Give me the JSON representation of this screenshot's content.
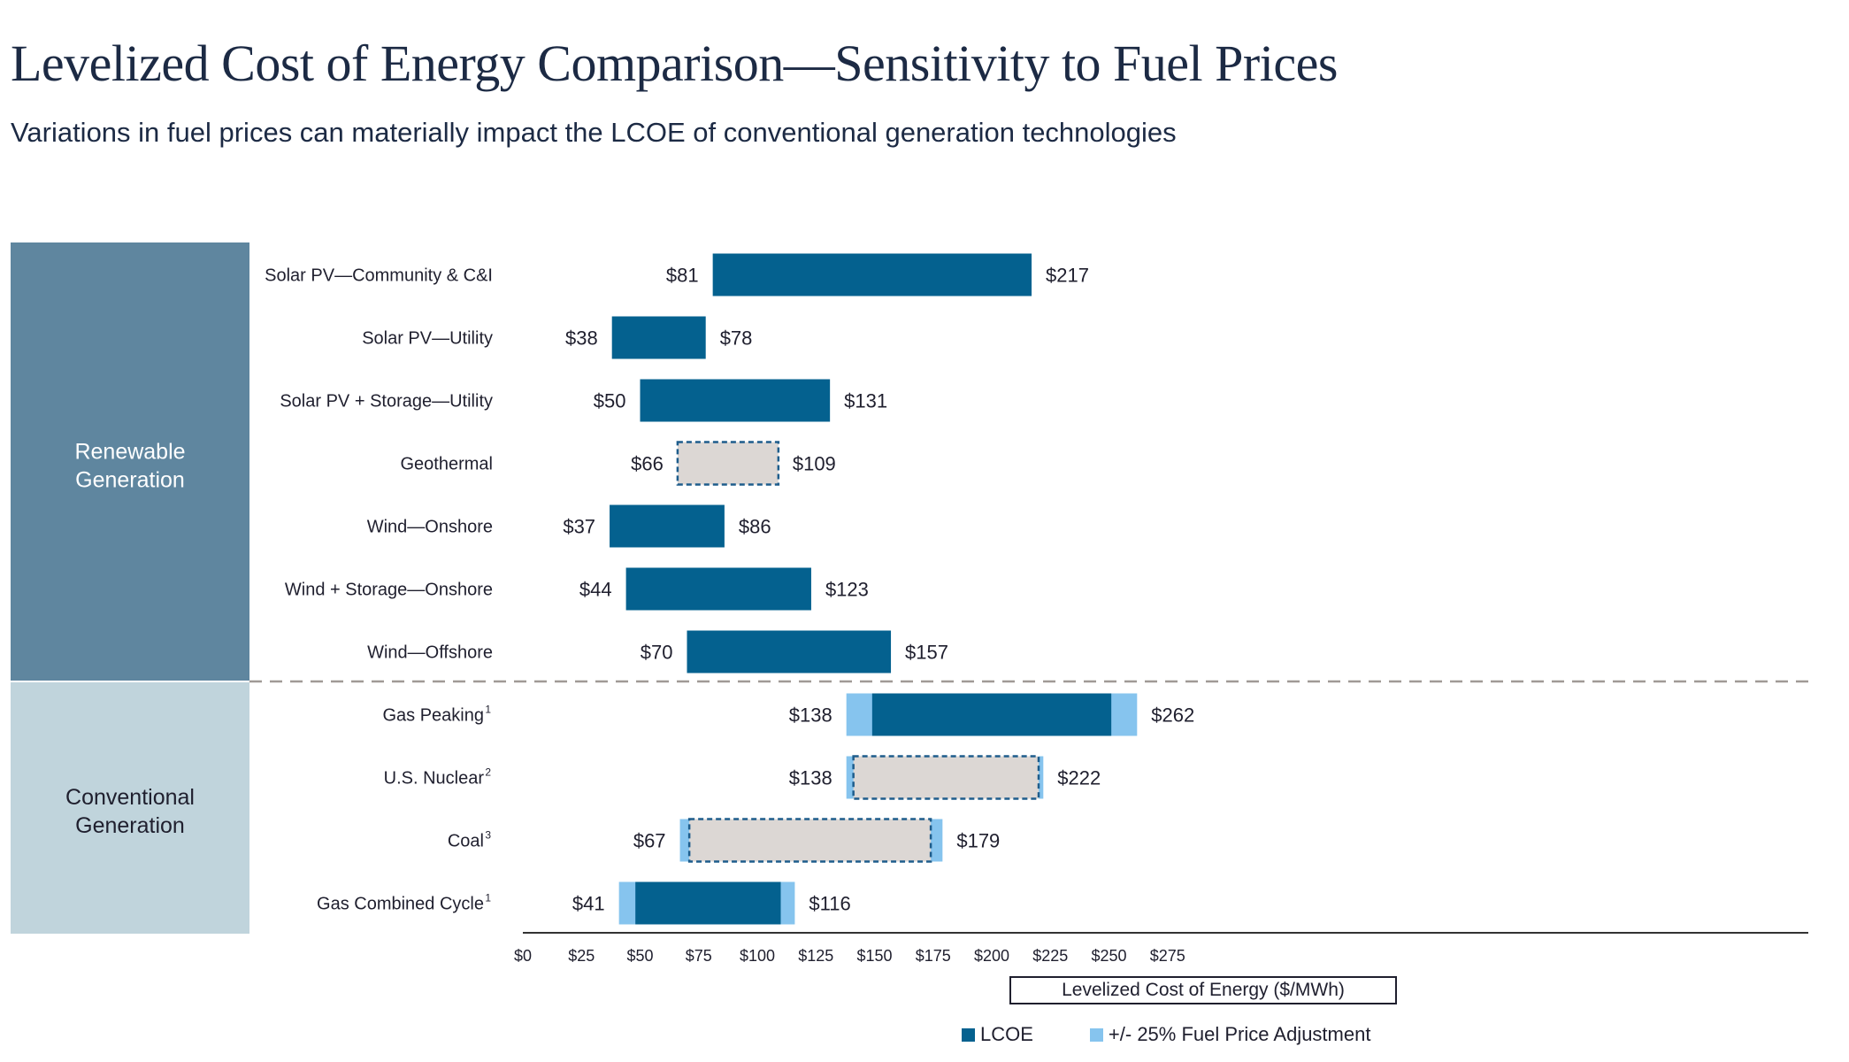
{
  "title": "Levelized Cost of Energy Comparison—Sensitivity to Fuel Prices",
  "subtitle": "Variations in fuel prices can materially impact the LCOE of conventional generation technologies",
  "colors": {
    "lcoe": "#04618f",
    "fuel_adjustment": "#86c4ee",
    "geothermal_nuclear_coal_fill": "#dcd7d4",
    "dashed_outline": "#1e5d8c",
    "group_renewable": "#5f869f",
    "group_conventional": "#c0d4dc",
    "separator": "#a09a96",
    "axis": "#333333"
  },
  "chart_data": {
    "type": "floating_bar",
    "orientation": "horizontal",
    "xlabel": "Levelized Cost of Energy ($/MWh)",
    "xlim": [
      0,
      275
    ],
    "x_ticks": [
      0,
      25,
      50,
      75,
      100,
      125,
      150,
      175,
      200,
      225,
      250,
      275
    ],
    "x_tick_labels": [
      "$0",
      "$25",
      "$50",
      "$75",
      "$100",
      "$125",
      "$150",
      "$175",
      "$200",
      "$225",
      "$250",
      "$275"
    ],
    "legend": [
      {
        "label": "LCOE",
        "color": "#04618f"
      },
      {
        "label": "+/- 25% Fuel Price Adjustment",
        "color": "#86c4ee"
      }
    ],
    "legend_position": "bottom",
    "groups": [
      {
        "label_line1": "Renewable",
        "label_line2": "Generation",
        "rows": 7
      },
      {
        "label_line1": "Conventional",
        "label_line2": "Generation",
        "rows": 4
      }
    ],
    "rows": [
      {
        "label": "Solar PV—Community & C&I",
        "note": "",
        "low": 81,
        "high": 217,
        "low_label": "$81",
        "high_label": "$217",
        "style": "solid"
      },
      {
        "label": "Solar PV—Utility",
        "note": "",
        "low": 38,
        "high": 78,
        "low_label": "$38",
        "high_label": "$78",
        "style": "solid"
      },
      {
        "label": "Solar PV + Storage—Utility",
        "note": "",
        "low": 50,
        "high": 131,
        "low_label": "$50",
        "high_label": "$131",
        "style": "solid"
      },
      {
        "label": "Geothermal",
        "note": "",
        "low": 66,
        "high": 109,
        "low_label": "$66",
        "high_label": "$109",
        "style": "dashed"
      },
      {
        "label": "Wind—Onshore",
        "note": "",
        "low": 37,
        "high": 86,
        "low_label": "$37",
        "high_label": "$86",
        "style": "solid"
      },
      {
        "label": "Wind + Storage—Onshore",
        "note": "",
        "low": 44,
        "high": 123,
        "low_label": "$44",
        "high_label": "$123",
        "style": "solid"
      },
      {
        "label": "Wind—Offshore",
        "note": "",
        "low": 70,
        "high": 157,
        "low_label": "$70",
        "high_label": "$157",
        "style": "solid"
      },
      {
        "label": "Gas Peaking",
        "note": "1",
        "low": 138,
        "high": 262,
        "core_low": 149,
        "core_high": 251,
        "low_label": "$138",
        "high_label": "$262",
        "style": "solid"
      },
      {
        "label": "U.S. Nuclear",
        "note": "2",
        "low": 138,
        "high": 222,
        "core_low": 141,
        "core_high": 220,
        "low_label": "$138",
        "high_label": "$222",
        "style": "dashed"
      },
      {
        "label": "Coal",
        "note": "3",
        "low": 67,
        "high": 179,
        "core_low": 71,
        "core_high": 174,
        "low_label": "$67",
        "high_label": "$179",
        "style": "dashed"
      },
      {
        "label": "Gas Combined Cycle",
        "note": "1",
        "low": 41,
        "high": 116,
        "core_low": 48,
        "core_high": 110,
        "low_label": "$41",
        "high_label": "$116",
        "style": "solid"
      }
    ]
  }
}
